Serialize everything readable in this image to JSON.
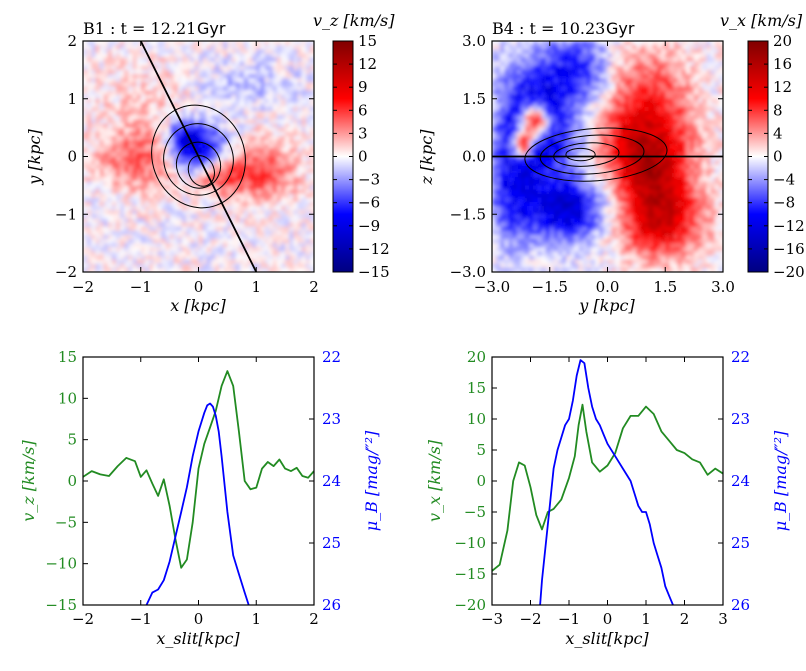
{
  "chart_data": [
    {
      "id": "B1_map",
      "type": "heatmap",
      "title_prefix": "B1 : t = 12.21",
      "title_unit": "Gyr",
      "xlabel": "x [kpc]",
      "ylabel": "y [kpc]",
      "xlim": [
        -2,
        2
      ],
      "ylim": [
        -2,
        2
      ],
      "xticks": [
        "−2",
        "−1",
        "0",
        "1",
        "2"
      ],
      "xtick_values": [
        -2,
        -1,
        0,
        1,
        2
      ],
      "yticks": [
        "2",
        "1",
        "0",
        "−1",
        "−2"
      ],
      "ytick_values": [
        2,
        1,
        0,
        -1,
        -2
      ],
      "colorbar_label": "v_z [km/s]",
      "colorbar_range": [
        -15,
        15
      ],
      "colorbar_ticks": [
        "15",
        "12",
        "9",
        "6",
        "3",
        "0",
        "−3",
        "−6",
        "−9",
        "−12",
        "−15"
      ],
      "colorbar_tick_values": [
        15,
        12,
        9,
        6,
        3,
        0,
        -3,
        -6,
        -9,
        -12,
        -15
      ],
      "colormap": {
        "low": "#000080",
        "mid": "#ffffff",
        "high": "#800000",
        "blue": "#0000ff",
        "red": "#ff0000"
      },
      "slit": {
        "from": [
          -1.0,
          2.0
        ],
        "to": [
          1.0,
          -2.0
        ]
      },
      "features": [
        {
          "x": 0.0,
          "y": 0.1,
          "v": -9,
          "sx": 0.35,
          "sy": 0.32
        },
        {
          "x": -0.25,
          "y": 0.35,
          "v": -5,
          "sx": 0.2,
          "sy": 0.2
        },
        {
          "x": 0.75,
          "y": 1.25,
          "v": -2,
          "sx": 0.6,
          "sy": 0.3
        },
        {
          "x": -1.0,
          "y": -0.05,
          "v": 5,
          "sx": 0.5,
          "sy": 0.35
        },
        {
          "x": 1.05,
          "y": -0.25,
          "v": 6,
          "sx": 0.45,
          "sy": 0.35
        },
        {
          "x": 0.35,
          "y": -0.3,
          "v": 5,
          "sx": 0.25,
          "sy": 0.2
        },
        {
          "x": -1.0,
          "y": 1.0,
          "v": 1.5,
          "sx": 0.7,
          "sy": 0.6
        },
        {
          "x": -0.1,
          "y": -0.45,
          "v": 2,
          "sx": 0.3,
          "sy": 0.15
        }
      ],
      "contours": [
        {
          "cx": 0.0,
          "cy": 0.0,
          "rx": 0.8,
          "ry": 0.9,
          "rot": -20
        },
        {
          "cx": 0.0,
          "cy": -0.05,
          "rx": 0.6,
          "ry": 0.62,
          "rot": -20
        },
        {
          "cx": 0.0,
          "cy": -0.15,
          "rx": 0.38,
          "ry": 0.4,
          "rot": -20
        },
        {
          "cx": 0.05,
          "cy": -0.25,
          "rx": 0.22,
          "ry": 0.27,
          "rot": -20
        }
      ]
    },
    {
      "id": "B4_map",
      "type": "heatmap",
      "title_prefix": "B4 : t = 10.23",
      "title_unit": "Gyr",
      "xlabel": "y [kpc]",
      "ylabel": "z [kpc]",
      "xlim": [
        -3,
        3
      ],
      "ylim": [
        -3,
        3
      ],
      "xticks": [
        "−3.0",
        "−1.5",
        "0.0",
        "1.5",
        "3.0"
      ],
      "xtick_values": [
        -3,
        -1.5,
        0,
        1.5,
        3
      ],
      "yticks": [
        "3.0",
        "1.5",
        "0.0",
        "−1.5",
        "−3.0"
      ],
      "ytick_values": [
        3,
        1.5,
        0,
        -1.5,
        -3
      ],
      "colorbar_label": "v_x [km/s]",
      "colorbar_range": [
        -20,
        20
      ],
      "colorbar_ticks": [
        "20",
        "16",
        "12",
        "8",
        "4",
        "0",
        "−4",
        "−8",
        "−12",
        "−16",
        "−20"
      ],
      "colorbar_tick_values": [
        20,
        16,
        12,
        8,
        4,
        0,
        -4,
        -8,
        -12,
        -16,
        -20
      ],
      "colormap": {
        "low": "#000080",
        "mid": "#ffffff",
        "high": "#800000",
        "blue": "#0000ff",
        "red": "#ff0000"
      },
      "slit": {
        "from": [
          -3.0,
          0.0
        ],
        "to": [
          3.0,
          0.0
        ]
      },
      "features": [
        {
          "x": -2.0,
          "y": 1.0,
          "v": -10,
          "sx": 0.6,
          "sy": 1.0
        },
        {
          "x": -1.5,
          "y": 0.2,
          "v": -6,
          "sx": 0.8,
          "sy": 1.5
        },
        {
          "x": -1.0,
          "y": -1.4,
          "v": -11,
          "sx": 0.7,
          "sy": 0.5
        },
        {
          "x": -0.7,
          "y": 2.3,
          "v": -8,
          "sx": 0.6,
          "sy": 0.6
        },
        {
          "x": -2.5,
          "y": -1.0,
          "v": -7,
          "sx": 0.4,
          "sy": 1.0
        },
        {
          "x": -1.9,
          "y": 0.9,
          "v": 24,
          "sx": 0.25,
          "sy": 0.32
        },
        {
          "x": -2.2,
          "y": 0.3,
          "v": 20,
          "sx": 0.18,
          "sy": 0.25
        },
        {
          "x": 1.2,
          "y": -0.5,
          "v": 14,
          "sx": 0.7,
          "sy": 1.0
        },
        {
          "x": 1.0,
          "y": 1.4,
          "v": 8,
          "sx": 0.8,
          "sy": 1.0
        },
        {
          "x": 1.5,
          "y": -1.8,
          "v": 8,
          "sx": 0.8,
          "sy": 0.6
        },
        {
          "x": 0.3,
          "y": 0.3,
          "v": 4,
          "sx": 0.6,
          "sy": 0.6
        }
      ],
      "contours": [
        {
          "cx": -0.3,
          "cy": 0.05,
          "rx": 1.85,
          "ry": 0.68,
          "rot": -4
        },
        {
          "cx": -0.4,
          "cy": 0.05,
          "rx": 1.35,
          "ry": 0.5,
          "rot": -4
        },
        {
          "cx": -0.55,
          "cy": 0.05,
          "rx": 0.85,
          "ry": 0.3,
          "rot": -4
        },
        {
          "cx": -0.7,
          "cy": 0.05,
          "rx": 0.38,
          "ry": 0.16,
          "rot": 0
        }
      ]
    },
    {
      "id": "B1_profile",
      "type": "line",
      "xlabel": "x_slit[kpc]",
      "xlim": [
        -2,
        2
      ],
      "xticks": [
        "−2",
        "−1",
        "0",
        "1",
        "2"
      ],
      "xtick_values": [
        -2,
        -1,
        0,
        1,
        2
      ],
      "ylabel_left": "v_z [km/s]",
      "ylim_left": [
        -15,
        15
      ],
      "yticks_left": [
        "15",
        "10",
        "5",
        "0",
        "−5",
        "−10",
        "−15"
      ],
      "ytick_values_left": [
        15,
        10,
        5,
        0,
        -5,
        -10,
        -15
      ],
      "ylabel_right": "μ_B [mag/″²]",
      "ylim_right": [
        26,
        22
      ],
      "yticks_right": [
        "22",
        "23",
        "24",
        "25",
        "26"
      ],
      "ytick_values_right": [
        22,
        23,
        24,
        25,
        26
      ],
      "series": [
        {
          "name": "v_z",
          "axis": "left",
          "color": "#228b22",
          "x": [
            -2.0,
            -1.85,
            -1.7,
            -1.55,
            -1.4,
            -1.25,
            -1.1,
            -1.0,
            -0.9,
            -0.8,
            -0.7,
            -0.6,
            -0.5,
            -0.4,
            -0.3,
            -0.2,
            -0.1,
            0.0,
            0.1,
            0.2,
            0.3,
            0.4,
            0.5,
            0.6,
            0.7,
            0.8,
            0.9,
            1.0,
            1.1,
            1.2,
            1.3,
            1.4,
            1.5,
            1.6,
            1.7,
            1.8,
            1.9,
            2.0
          ],
          "y": [
            0.5,
            1.2,
            0.8,
            0.6,
            1.8,
            2.8,
            2.4,
            0.5,
            1.3,
            -0.3,
            -1.8,
            0.2,
            -3.0,
            -7.0,
            -10.5,
            -9.5,
            -5.0,
            1.5,
            4.5,
            6.5,
            8.5,
            11.5,
            13.3,
            11.5,
            6.0,
            0.0,
            -1.0,
            -0.8,
            1.5,
            2.3,
            1.8,
            2.6,
            1.5,
            1.2,
            1.6,
            0.6,
            0.4,
            1.2
          ]
        },
        {
          "name": "μ_B",
          "axis": "right",
          "color": "#0000ff",
          "x": [
            -0.9,
            -0.8,
            -0.7,
            -0.6,
            -0.5,
            -0.4,
            -0.3,
            -0.2,
            -0.1,
            0.0,
            0.05,
            0.1,
            0.15,
            0.2,
            0.25,
            0.3,
            0.35,
            0.4,
            0.5,
            0.6,
            0.7,
            0.8,
            0.87
          ],
          "y": [
            26.0,
            25.8,
            25.75,
            25.6,
            25.3,
            24.9,
            24.5,
            24.1,
            23.6,
            23.2,
            23.05,
            22.9,
            22.78,
            22.75,
            22.8,
            22.95,
            23.2,
            23.6,
            24.5,
            25.2,
            25.5,
            25.8,
            26.0
          ]
        }
      ]
    },
    {
      "id": "B4_profile",
      "type": "line",
      "xlabel": "x_slit[kpc]",
      "xlim": [
        -3,
        3
      ],
      "xticks": [
        "−3",
        "−2",
        "−1",
        "0",
        "1",
        "2",
        "3"
      ],
      "xtick_values": [
        -3,
        -2,
        -1,
        0,
        1,
        2,
        3
      ],
      "ylabel_left": "v_x [km/s]",
      "ylim_left": [
        -20,
        20
      ],
      "yticks_left": [
        "20",
        "15",
        "10",
        "5",
        "0",
        "−5",
        "−10",
        "−15",
        "−20"
      ],
      "ytick_values_left": [
        20,
        15,
        10,
        5,
        0,
        -5,
        -10,
        -15,
        -20
      ],
      "ylabel_right": "μ_B [mag/″²]",
      "ylim_right": [
        26,
        22
      ],
      "yticks_right": [
        "22",
        "23",
        "24",
        "25",
        "26"
      ],
      "ytick_values_right": [
        22,
        23,
        24,
        25,
        26
      ],
      "series": [
        {
          "name": "v_x",
          "axis": "left",
          "color": "#228b22",
          "x": [
            -3.0,
            -2.8,
            -2.6,
            -2.45,
            -2.3,
            -2.15,
            -2.0,
            -1.85,
            -1.7,
            -1.55,
            -1.4,
            -1.2,
            -1.0,
            -0.85,
            -0.75,
            -0.65,
            -0.55,
            -0.4,
            -0.2,
            0.0,
            0.2,
            0.4,
            0.6,
            0.8,
            1.0,
            1.2,
            1.4,
            1.6,
            1.8,
            2.0,
            2.2,
            2.4,
            2.6,
            2.8,
            3.0
          ],
          "y": [
            -14.5,
            -13.5,
            -8.0,
            0.0,
            3.0,
            2.5,
            -1.0,
            -5.5,
            -7.8,
            -5.0,
            -4.5,
            -3.0,
            0.5,
            4.0,
            9.0,
            12.3,
            8.0,
            3.0,
            1.5,
            2.5,
            4.5,
            8.5,
            10.5,
            10.5,
            12.0,
            10.8,
            8.0,
            6.5,
            5.0,
            4.5,
            3.5,
            3.0,
            1.0,
            2.0,
            1.2
          ]
        },
        {
          "name": "μ_B",
          "axis": "right",
          "color": "#0000ff",
          "x": [
            -1.75,
            -1.7,
            -1.6,
            -1.5,
            -1.4,
            -1.3,
            -1.2,
            -1.1,
            -1.0,
            -0.9,
            -0.8,
            -0.7,
            -0.6,
            -0.5,
            -0.4,
            -0.3,
            -0.2,
            -0.1,
            0.0,
            0.2,
            0.4,
            0.6,
            0.8,
            0.9,
            1.0,
            1.1,
            1.2,
            1.3,
            1.4,
            1.5,
            1.6,
            1.7
          ],
          "y": [
            26.0,
            25.6,
            25.0,
            24.4,
            23.8,
            23.5,
            23.3,
            23.1,
            23.0,
            22.7,
            22.3,
            22.05,
            22.1,
            22.5,
            22.8,
            23.0,
            23.1,
            23.25,
            23.4,
            23.6,
            23.8,
            24.0,
            24.4,
            24.5,
            24.5,
            24.7,
            25.0,
            25.2,
            25.4,
            25.7,
            25.85,
            26.0
          ]
        }
      ]
    }
  ]
}
